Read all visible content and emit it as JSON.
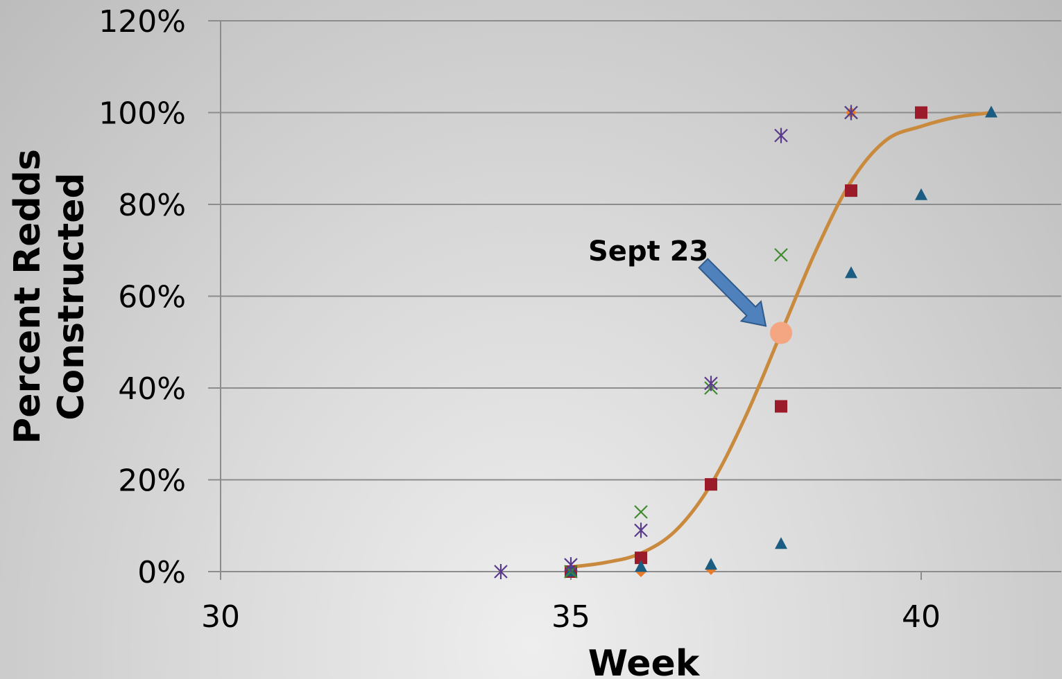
{
  "chart_data": {
    "type": "scatter",
    "xlabel": "Week",
    "ylabel_lines": [
      "Percent Redds",
      "Constructed"
    ],
    "xlim": [
      30,
      42
    ],
    "ylim": [
      0,
      1.2
    ],
    "x_ticks": [
      30,
      35,
      40
    ],
    "x_tick_labels": [
      "30",
      "35",
      "40"
    ],
    "y_ticks": [
      0,
      0.2,
      0.4,
      0.6,
      0.8,
      1.0,
      1.2
    ],
    "y_tick_labels": [
      "0%",
      "20%",
      "40%",
      "60%",
      "80%",
      "100%",
      "120%"
    ],
    "grid": "horizontal",
    "series": [
      {
        "marker": "diamond",
        "color": "#e97a26",
        "x": [
          35,
          36,
          37,
          39
        ],
        "y": [
          0.0,
          0.0,
          0.005,
          1.0
        ]
      },
      {
        "marker": "square",
        "color": "#9b1b2a",
        "x": [
          35,
          36,
          37,
          38,
          39,
          40
        ],
        "y": [
          0.0,
          0.03,
          0.19,
          0.36,
          0.83,
          1.0
        ]
      },
      {
        "marker": "triangle",
        "color": "#1b5c82",
        "x": [
          35,
          36,
          37,
          38,
          39,
          40,
          41
        ],
        "y": [
          0.0,
          0.01,
          0.015,
          0.06,
          0.65,
          0.82,
          1.0
        ]
      },
      {
        "marker": "x",
        "color": "#3f8a2e",
        "x": [
          35,
          36,
          37,
          38,
          39
        ],
        "y": [
          0.0,
          0.13,
          0.4,
          0.69,
          1.0
        ]
      },
      {
        "marker": "star",
        "color": "#5a3a8a",
        "x": [
          34,
          35,
          36,
          37,
          38,
          39
        ],
        "y": [
          0.0,
          0.015,
          0.09,
          0.41,
          0.95,
          1.0
        ]
      }
    ],
    "fit_curve": {
      "color": "#c98a3d",
      "x": [
        35,
        35.5,
        36,
        36.5,
        37,
        37.5,
        38,
        38.5,
        39,
        39.5,
        40,
        40.5,
        41
      ],
      "y": [
        0.01,
        0.02,
        0.04,
        0.09,
        0.19,
        0.34,
        0.52,
        0.7,
        0.85,
        0.94,
        0.97,
        0.99,
        1.0
      ]
    },
    "highlight_point": {
      "x": 38,
      "y": 0.52,
      "color": "#f4a582"
    },
    "annotation": {
      "text": "Sept 23",
      "arrow_color": "#4f81bd"
    }
  }
}
